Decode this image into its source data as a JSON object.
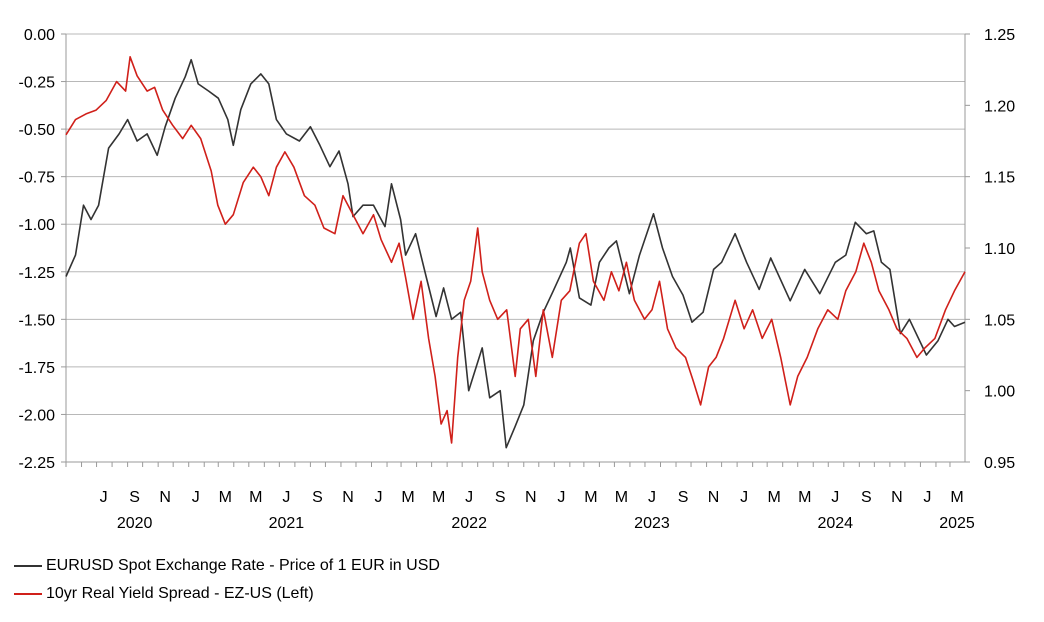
{
  "chart_data": {
    "type": "line",
    "title": "",
    "y_left": {
      "range": [
        -2.25,
        0.0
      ],
      "ticks": [
        "0.00",
        "-0.25",
        "-0.50",
        "-0.75",
        "-1.00",
        "-1.25",
        "-1.50",
        "-1.75",
        "-2.00",
        "-2.25"
      ],
      "tick_values": [
        0.0,
        -0.25,
        -0.5,
        -0.75,
        -1.0,
        -1.25,
        -1.5,
        -1.75,
        -2.0,
        -2.25
      ]
    },
    "y_right": {
      "range": [
        0.95,
        1.25
      ],
      "ticks": [
        "1.25",
        "1.20",
        "1.15",
        "1.10",
        "1.05",
        "1.00",
        "0.95"
      ],
      "tick_values": [
        1.25,
        1.2,
        1.15,
        1.1,
        1.05,
        1.0,
        0.95
      ]
    },
    "x_axis": {
      "range": [
        "2020-05-01",
        "2025-03-31"
      ],
      "month_labels": [
        {
          "label": "J",
          "date": "2020-07"
        },
        {
          "label": "S",
          "date": "2020-09"
        },
        {
          "label": "N",
          "date": "2020-11"
        },
        {
          "label": "J",
          "date": "2021-01"
        },
        {
          "label": "M",
          "date": "2021-03"
        },
        {
          "label": "M",
          "date": "2021-05"
        },
        {
          "label": "J",
          "date": "2021-07"
        },
        {
          "label": "S",
          "date": "2021-09"
        },
        {
          "label": "N",
          "date": "2021-11"
        },
        {
          "label": "J",
          "date": "2022-01"
        },
        {
          "label": "M",
          "date": "2022-03"
        },
        {
          "label": "M",
          "date": "2022-05"
        },
        {
          "label": "J",
          "date": "2022-07"
        },
        {
          "label": "S",
          "date": "2022-09"
        },
        {
          "label": "N",
          "date": "2022-11"
        },
        {
          "label": "J",
          "date": "2023-01"
        },
        {
          "label": "M",
          "date": "2023-03"
        },
        {
          "label": "M",
          "date": "2023-05"
        },
        {
          "label": "J",
          "date": "2023-07"
        },
        {
          "label": "S",
          "date": "2023-09"
        },
        {
          "label": "N",
          "date": "2023-11"
        },
        {
          "label": "J",
          "date": "2024-01"
        },
        {
          "label": "M",
          "date": "2024-03"
        },
        {
          "label": "M",
          "date": "2024-05"
        },
        {
          "label": "J",
          "date": "2024-07"
        },
        {
          "label": "S",
          "date": "2024-09"
        },
        {
          "label": "N",
          "date": "2024-11"
        },
        {
          "label": "J",
          "date": "2025-01"
        },
        {
          "label": "M",
          "date": "2025-03"
        }
      ],
      "year_labels": [
        {
          "label": "2020",
          "date": "2020-09"
        },
        {
          "label": "2021",
          "date": "2021-07"
        },
        {
          "label": "2022",
          "date": "2022-07"
        },
        {
          "label": "2023",
          "date": "2023-07"
        },
        {
          "label": "2024",
          "date": "2024-07"
        },
        {
          "label": "2025",
          "date": "2025-03"
        }
      ]
    },
    "grid": "horizontal",
    "legend_position": "bottom-left",
    "series": [
      {
        "name": "EURUSD Spot Exchange Rate - Price of 1 EUR in USD",
        "axis": "right",
        "color": "#333333",
        "points": [
          [
            "2020-05-01",
            1.08
          ],
          [
            "2020-05-20",
            1.095
          ],
          [
            "2020-06-05",
            1.13
          ],
          [
            "2020-06-20",
            1.12
          ],
          [
            "2020-07-05",
            1.13
          ],
          [
            "2020-07-25",
            1.17
          ],
          [
            "2020-08-15",
            1.18
          ],
          [
            "2020-09-01",
            1.19
          ],
          [
            "2020-09-20",
            1.175
          ],
          [
            "2020-10-10",
            1.18
          ],
          [
            "2020-10-30",
            1.165
          ],
          [
            "2020-11-15",
            1.185
          ],
          [
            "2020-12-05",
            1.205
          ],
          [
            "2020-12-25",
            1.22
          ],
          [
            "2021-01-06",
            1.232
          ],
          [
            "2021-01-20",
            1.215
          ],
          [
            "2021-02-10",
            1.21
          ],
          [
            "2021-03-01",
            1.205
          ],
          [
            "2021-03-20",
            1.19
          ],
          [
            "2021-03-31",
            1.172
          ],
          [
            "2021-04-15",
            1.197
          ],
          [
            "2021-05-05",
            1.215
          ],
          [
            "2021-05-25",
            1.222
          ],
          [
            "2021-06-10",
            1.215
          ],
          [
            "2021-06-25",
            1.19
          ],
          [
            "2021-07-15",
            1.18
          ],
          [
            "2021-08-10",
            1.175
          ],
          [
            "2021-09-01",
            1.185
          ],
          [
            "2021-09-20",
            1.172
          ],
          [
            "2021-10-10",
            1.157
          ],
          [
            "2021-10-28",
            1.168
          ],
          [
            "2021-11-15",
            1.145
          ],
          [
            "2021-11-25",
            1.122
          ],
          [
            "2021-12-15",
            1.13
          ],
          [
            "2022-01-05",
            1.13
          ],
          [
            "2022-01-28",
            1.115
          ],
          [
            "2022-02-10",
            1.145
          ],
          [
            "2022-02-28",
            1.12
          ],
          [
            "2022-03-10",
            1.095
          ],
          [
            "2022-03-30",
            1.11
          ],
          [
            "2022-04-20",
            1.08
          ],
          [
            "2022-05-10",
            1.052
          ],
          [
            "2022-05-25",
            1.072
          ],
          [
            "2022-06-10",
            1.05
          ],
          [
            "2022-06-28",
            1.055
          ],
          [
            "2022-07-14",
            1.0
          ],
          [
            "2022-08-10",
            1.03
          ],
          [
            "2022-08-25",
            0.995
          ],
          [
            "2022-09-15",
            1.0
          ],
          [
            "2022-09-27",
            0.96
          ],
          [
            "2022-10-15",
            0.975
          ],
          [
            "2022-11-01",
            0.99
          ],
          [
            "2022-11-20",
            1.035
          ],
          [
            "2022-12-10",
            1.055
          ],
          [
            "2022-12-30",
            1.07
          ],
          [
            "2023-01-25",
            1.09
          ],
          [
            "2023-02-02",
            1.1
          ],
          [
            "2023-02-20",
            1.065
          ],
          [
            "2023-03-15",
            1.06
          ],
          [
            "2023-04-01",
            1.09
          ],
          [
            "2023-04-20",
            1.1
          ],
          [
            "2023-05-05",
            1.105
          ],
          [
            "2023-05-31",
            1.068
          ],
          [
            "2023-06-20",
            1.095
          ],
          [
            "2023-07-18",
            1.124
          ],
          [
            "2023-08-05",
            1.1
          ],
          [
            "2023-08-25",
            1.08
          ],
          [
            "2023-09-15",
            1.067
          ],
          [
            "2023-10-03",
            1.048
          ],
          [
            "2023-10-25",
            1.055
          ],
          [
            "2023-11-15",
            1.085
          ],
          [
            "2023-12-01",
            1.09
          ],
          [
            "2023-12-28",
            1.11
          ],
          [
            "2024-01-20",
            1.09
          ],
          [
            "2024-02-14",
            1.071
          ],
          [
            "2024-03-08",
            1.093
          ],
          [
            "2024-04-16",
            1.063
          ],
          [
            "2024-05-15",
            1.085
          ],
          [
            "2024-06-14",
            1.068
          ],
          [
            "2024-07-15",
            1.09
          ],
          [
            "2024-08-05",
            1.095
          ],
          [
            "2024-08-24",
            1.118
          ],
          [
            "2024-09-15",
            1.11
          ],
          [
            "2024-09-30",
            1.112
          ],
          [
            "2024-10-15",
            1.09
          ],
          [
            "2024-11-01",
            1.085
          ],
          [
            "2024-11-22",
            1.04
          ],
          [
            "2024-12-10",
            1.05
          ],
          [
            "2025-01-13",
            1.025
          ],
          [
            "2025-02-05",
            1.035
          ],
          [
            "2025-02-25",
            1.05
          ],
          [
            "2025-03-10",
            1.045
          ],
          [
            "2025-03-31",
            1.048
          ]
        ]
      },
      {
        "name": "10yr Real Yield Spread - EZ-US (Left)",
        "axis": "left",
        "color": "#d0201a",
        "points": [
          [
            "2020-05-01",
            -0.53
          ],
          [
            "2020-05-20",
            -0.45
          ],
          [
            "2020-06-10",
            -0.42
          ],
          [
            "2020-06-30",
            -0.4
          ],
          [
            "2020-07-20",
            -0.35
          ],
          [
            "2020-08-10",
            -0.25
          ],
          [
            "2020-08-28",
            -0.3
          ],
          [
            "2020-09-06",
            -0.12
          ],
          [
            "2020-09-20",
            -0.22
          ],
          [
            "2020-10-10",
            -0.3
          ],
          [
            "2020-10-25",
            -0.28
          ],
          [
            "2020-11-10",
            -0.4
          ],
          [
            "2020-11-30",
            -0.48
          ],
          [
            "2020-12-20",
            -0.55
          ],
          [
            "2021-01-06",
            -0.48
          ],
          [
            "2021-01-25",
            -0.55
          ],
          [
            "2021-02-15",
            -0.72
          ],
          [
            "2021-02-28",
            -0.9
          ],
          [
            "2021-03-15",
            -1.0
          ],
          [
            "2021-03-31",
            -0.95
          ],
          [
            "2021-04-20",
            -0.78
          ],
          [
            "2021-05-10",
            -0.7
          ],
          [
            "2021-05-25",
            -0.75
          ],
          [
            "2021-06-10",
            -0.85
          ],
          [
            "2021-06-25",
            -0.7
          ],
          [
            "2021-07-12",
            -0.62
          ],
          [
            "2021-07-30",
            -0.7
          ],
          [
            "2021-08-20",
            -0.85
          ],
          [
            "2021-09-10",
            -0.9
          ],
          [
            "2021-09-28",
            -1.02
          ],
          [
            "2021-10-20",
            -1.05
          ],
          [
            "2021-11-05",
            -0.85
          ],
          [
            "2021-11-25",
            -0.95
          ],
          [
            "2021-12-15",
            -1.05
          ],
          [
            "2022-01-05",
            -0.95
          ],
          [
            "2022-01-20",
            -1.08
          ],
          [
            "2022-02-10",
            -1.2
          ],
          [
            "2022-02-25",
            -1.1
          ],
          [
            "2022-03-10",
            -1.28
          ],
          [
            "2022-03-25",
            -1.5
          ],
          [
            "2022-04-10",
            -1.3
          ],
          [
            "2022-04-25",
            -1.6
          ],
          [
            "2022-05-08",
            -1.8
          ],
          [
            "2022-05-20",
            -2.05
          ],
          [
            "2022-06-01",
            -1.98
          ],
          [
            "2022-06-10",
            -2.15
          ],
          [
            "2022-06-22",
            -1.7
          ],
          [
            "2022-07-05",
            -1.4
          ],
          [
            "2022-07-18",
            -1.3
          ],
          [
            "2022-08-01",
            -1.02
          ],
          [
            "2022-08-10",
            -1.25
          ],
          [
            "2022-08-25",
            -1.4
          ],
          [
            "2022-09-10",
            -1.5
          ],
          [
            "2022-09-28",
            -1.45
          ],
          [
            "2022-10-15",
            -1.8
          ],
          [
            "2022-10-25",
            -1.55
          ],
          [
            "2022-11-10",
            -1.5
          ],
          [
            "2022-11-25",
            -1.8
          ],
          [
            "2022-12-10",
            -1.45
          ],
          [
            "2022-12-28",
            -1.7
          ],
          [
            "2023-01-15",
            -1.4
          ],
          [
            "2023-02-01",
            -1.35
          ],
          [
            "2023-02-20",
            -1.1
          ],
          [
            "2023-03-05",
            -1.05
          ],
          [
            "2023-03-20",
            -1.3
          ],
          [
            "2023-04-10",
            -1.4
          ],
          [
            "2023-04-25",
            -1.25
          ],
          [
            "2023-05-10",
            -1.35
          ],
          [
            "2023-05-25",
            -1.2
          ],
          [
            "2023-06-10",
            -1.4
          ],
          [
            "2023-06-30",
            -1.5
          ],
          [
            "2023-07-15",
            -1.45
          ],
          [
            "2023-07-30",
            -1.3
          ],
          [
            "2023-08-15",
            -1.55
          ],
          [
            "2023-09-01",
            -1.65
          ],
          [
            "2023-09-20",
            -1.7
          ],
          [
            "2023-10-05",
            -1.82
          ],
          [
            "2023-10-20",
            -1.95
          ],
          [
            "2023-11-05",
            -1.75
          ],
          [
            "2023-11-20",
            -1.7
          ],
          [
            "2023-12-05",
            -1.6
          ],
          [
            "2023-12-28",
            -1.4
          ],
          [
            "2024-01-15",
            -1.55
          ],
          [
            "2024-02-01",
            -1.45
          ],
          [
            "2024-02-20",
            -1.6
          ],
          [
            "2024-03-10",
            -1.5
          ],
          [
            "2024-03-28",
            -1.7
          ],
          [
            "2024-04-16",
            -1.95
          ],
          [
            "2024-05-01",
            -1.8
          ],
          [
            "2024-05-20",
            -1.7
          ],
          [
            "2024-06-10",
            -1.55
          ],
          [
            "2024-06-30",
            -1.45
          ],
          [
            "2024-07-20",
            -1.5
          ],
          [
            "2024-08-05",
            -1.35
          ],
          [
            "2024-08-25",
            -1.25
          ],
          [
            "2024-09-10",
            -1.1
          ],
          [
            "2024-09-25",
            -1.2
          ],
          [
            "2024-10-10",
            -1.35
          ],
          [
            "2024-10-30",
            -1.45
          ],
          [
            "2024-11-15",
            -1.55
          ],
          [
            "2024-12-05",
            -1.6
          ],
          [
            "2024-12-25",
            -1.7
          ],
          [
            "2025-01-10",
            -1.65
          ],
          [
            "2025-01-30",
            -1.6
          ],
          [
            "2025-02-20",
            -1.45
          ],
          [
            "2025-03-10",
            -1.35
          ],
          [
            "2025-03-31",
            -1.25
          ]
        ]
      }
    ]
  }
}
